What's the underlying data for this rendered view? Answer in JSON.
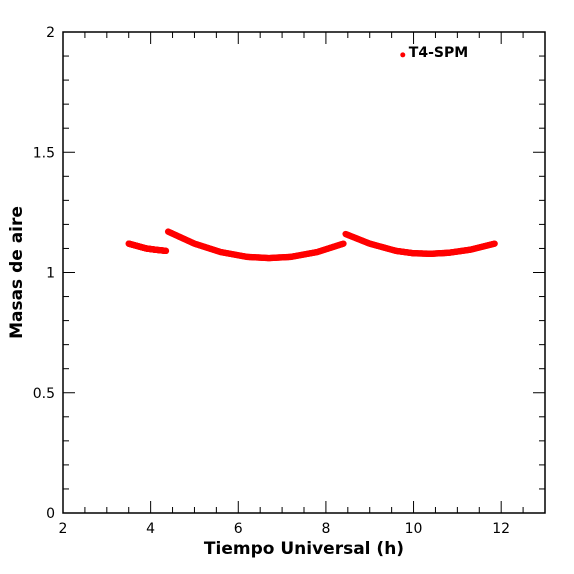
{
  "chart_data": {
    "type": "scatter",
    "xlabel": "Tiempo Universal (h)",
    "ylabel": "Masas de aire",
    "xlim": [
      2,
      13
    ],
    "ylim": [
      0,
      2
    ],
    "x_ticks": [
      "2",
      "4",
      "6",
      "8",
      "10",
      "12"
    ],
    "y_ticks": [
      "0",
      "0.5",
      "1",
      "1.5",
      "2"
    ],
    "legend": {
      "label": "T4-SPM",
      "placement": "top-right"
    },
    "series": [
      {
        "name": "T4-SPM",
        "color": "#ff0000",
        "segments": [
          {
            "x": [
              3.5,
              3.7,
              3.9,
              4.1,
              4.35
            ],
            "y": [
              1.12,
              1.11,
              1.1,
              1.095,
              1.09
            ]
          },
          {
            "x": [
              4.4,
              5.0,
              5.6,
              6.2,
              6.7,
              7.2,
              7.8,
              8.4
            ],
            "y": [
              1.17,
              1.12,
              1.085,
              1.065,
              1.06,
              1.065,
              1.085,
              1.12
            ]
          },
          {
            "x": [
              8.45,
              9.0,
              9.6,
              10.0,
              10.4,
              10.8,
              11.3,
              11.85
            ],
            "y": [
              1.16,
              1.12,
              1.09,
              1.08,
              1.078,
              1.082,
              1.095,
              1.12
            ]
          }
        ]
      }
    ]
  }
}
